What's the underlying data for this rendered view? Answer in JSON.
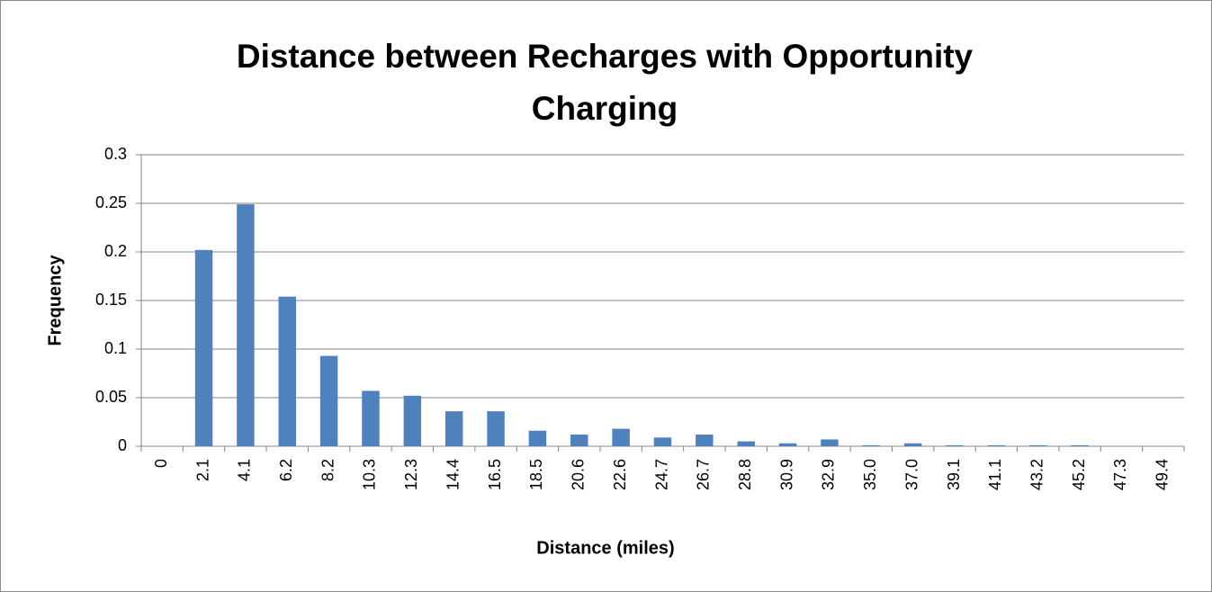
{
  "chart_data": {
    "type": "bar",
    "title": "Distance between Recharges with Opportunity Charging",
    "x_label": "Distance (miles)",
    "y_label": "Frequency",
    "categories": [
      "0",
      "2.1",
      "4.1",
      "6.2",
      "8.2",
      "10.3",
      "12.3",
      "14.4",
      "16.5",
      "18.5",
      "20.6",
      "22.6",
      "24.7",
      "26.7",
      "28.8",
      "30.9",
      "32.9",
      "35.0",
      "37.0",
      "39.1",
      "41.1",
      "43.2",
      "45.2",
      "47.3",
      "49.4"
    ],
    "values": [
      0,
      0.202,
      0.249,
      0.154,
      0.093,
      0.057,
      0.052,
      0.036,
      0.036,
      0.016,
      0.012,
      0.018,
      0.009,
      0.012,
      0.005,
      0.003,
      0.007,
      0.001,
      0.003,
      0.001,
      0.001,
      0.001,
      0.001,
      0,
      0
    ],
    "color": "#4f81bd",
    "ylim": [
      0,
      0.3
    ],
    "yticks": [
      0,
      0.05,
      0.1,
      0.15,
      0.2,
      0.25,
      0.3
    ],
    "grid": true
  }
}
